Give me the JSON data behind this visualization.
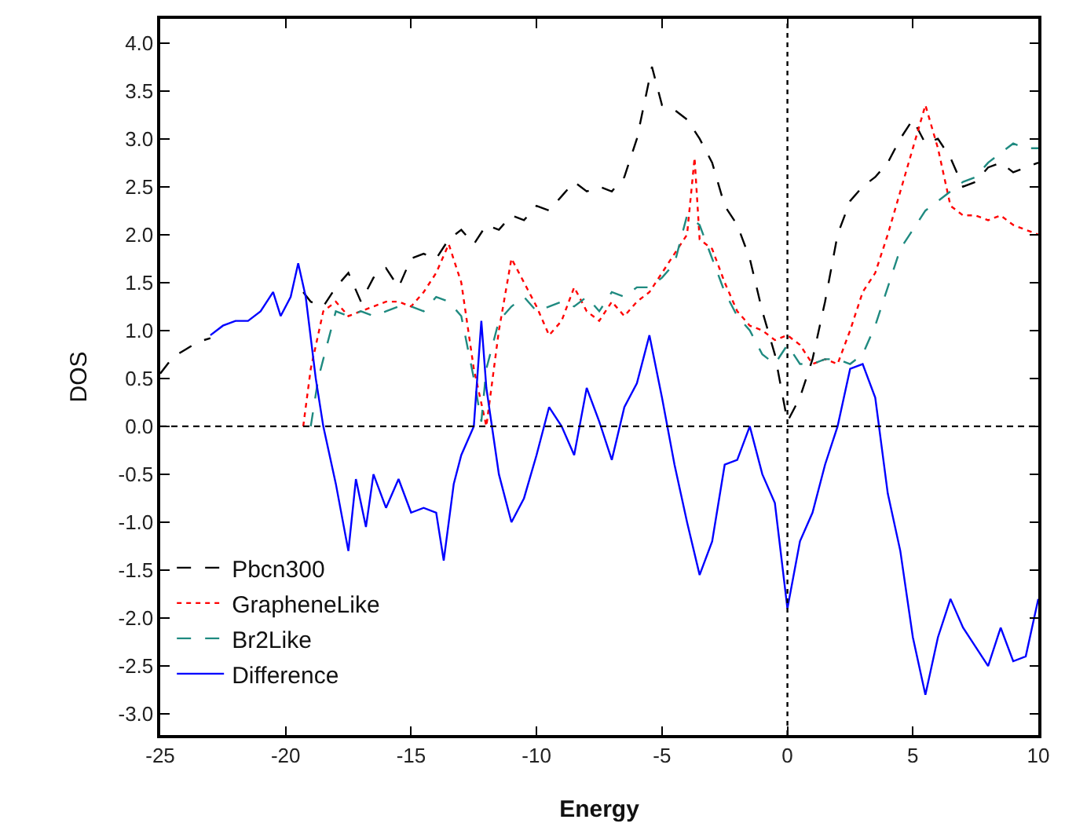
{
  "chart_data": {
    "type": "line",
    "xlabel": "Energy",
    "ylabel": "DOS",
    "xlim": [
      -25,
      10
    ],
    "xticks": [
      -25,
      -20,
      -15,
      -10,
      -5,
      0,
      5,
      10
    ],
    "ylim": [
      -3.22,
      4.25
    ],
    "yticks": [
      {
        "value": -3,
        "label": "-3.0"
      },
      {
        "value": -2.5,
        "label": "-2.5"
      },
      {
        "value": -2,
        "label": "-2.0"
      },
      {
        "value": -1.5,
        "label": "-1.5"
      },
      {
        "value": -1,
        "label": "-1.0"
      },
      {
        "value": -0.5,
        "label": "-0.5"
      },
      {
        "value": 0,
        "label": "0.0"
      },
      {
        "value": 0.5,
        "label": "0.5"
      },
      {
        "value": 1,
        "label": "1.0"
      },
      {
        "value": 1.5,
        "label": "1.5"
      },
      {
        "value": 2,
        "label": "2.0"
      },
      {
        "value": 2.5,
        "label": "2.5"
      },
      {
        "value": 3,
        "label": "3.0"
      },
      {
        "value": 3.5,
        "label": "3.5"
      },
      {
        "value": 4,
        "label": "4.0"
      }
    ],
    "legend": "bottom left",
    "marker": "none",
    "ref_lines": [
      {
        "axis": "x",
        "value": 0,
        "color": "#000000",
        "line_style": "dotted"
      },
      {
        "axis": "y",
        "value": 0,
        "color": "#000000",
        "line_style": "dashed"
      }
    ],
    "series": [
      {
        "name": "Pbcn300",
        "color": "#000000",
        "line_style": "dashed",
        "x": [
          -25,
          -24.5,
          -24,
          -23.5,
          -23,
          -22,
          -19.3,
          -19,
          -18.5,
          -18,
          -17.5,
          -17,
          -16.5,
          -16,
          -15.5,
          -15,
          -14.5,
          -14,
          -13.5,
          -13,
          -12.5,
          -12,
          -11.5,
          -11,
          -10.5,
          -10,
          -9.5,
          -9,
          -8.5,
          -8,
          -7.5,
          -7,
          -6.5,
          -6,
          -5.4,
          -5,
          -4.5,
          -4,
          -3.5,
          -3,
          -2.5,
          -2,
          -1.5,
          -1,
          -0.5,
          0,
          0.5,
          1,
          1.5,
          2,
          2.5,
          3,
          3.5,
          4,
          4.5,
          5,
          5.5,
          6,
          6.5,
          7,
          7.5,
          8,
          8.5,
          9,
          9.5,
          10
        ],
        "values": [
          0.55,
          0.72,
          0.8,
          0.88,
          0.92,
          null,
          1.4,
          1.3,
          1.25,
          1.45,
          1.6,
          1.3,
          1.55,
          1.65,
          1.45,
          1.75,
          1.8,
          1.75,
          1.95,
          2.05,
          1.9,
          2.1,
          2.05,
          2.2,
          2.15,
          2.3,
          2.25,
          2.4,
          2.55,
          2.45,
          2.5,
          2.45,
          2.6,
          3.0,
          3.75,
          3.35,
          3.3,
          3.2,
          3.0,
          2.75,
          2.3,
          2.1,
          1.75,
          1.2,
          0.75,
          0.05,
          0.3,
          0.7,
          1.3,
          2.0,
          2.35,
          2.5,
          2.6,
          2.75,
          3.0,
          3.2,
          2.95,
          3.0,
          2.8,
          2.5,
          2.55,
          2.7,
          2.75,
          2.65,
          2.7,
          2.75
        ]
      },
      {
        "name": "GrapheneLike",
        "color": "#ff0000",
        "line_style": "dotted",
        "x": [
          -19.3,
          -19,
          -18.5,
          -18,
          -17.5,
          -17,
          -16.5,
          -16,
          -15.5,
          -15,
          -14.5,
          -14,
          -13.5,
          -13,
          -12.5,
          -12,
          -11.5,
          -11,
          -10.5,
          -10,
          -9.5,
          -9,
          -8.5,
          -8,
          -7.5,
          -7,
          -6.5,
          -6,
          -5.5,
          -5,
          -4.5,
          -4,
          -3.7,
          -3.5,
          -3,
          -2.5,
          -2,
          -1.5,
          -1,
          -0.5,
          0,
          0.5,
          1,
          1.5,
          2,
          2.5,
          3,
          3.5,
          4,
          4.5,
          5,
          5.5,
          6,
          6.5,
          7,
          7.5,
          8,
          8.5,
          9,
          9.5,
          10
        ],
        "values": [
          0.0,
          0.6,
          1.2,
          1.3,
          1.15,
          1.2,
          1.25,
          1.3,
          1.3,
          1.25,
          1.4,
          1.6,
          1.9,
          1.5,
          0.6,
          0.0,
          1.0,
          1.75,
          1.5,
          1.25,
          0.95,
          1.1,
          1.45,
          1.2,
          1.1,
          1.3,
          1.15,
          1.3,
          1.4,
          1.6,
          1.8,
          2.0,
          2.8,
          1.95,
          1.85,
          1.5,
          1.2,
          1.05,
          1.0,
          0.9,
          0.95,
          0.85,
          0.65,
          0.7,
          0.65,
          1.0,
          1.4,
          1.6,
          2.0,
          2.45,
          2.9,
          3.35,
          2.9,
          2.3,
          2.2,
          2.2,
          2.15,
          2.2,
          2.1,
          2.05,
          2.0
        ]
      },
      {
        "name": "Br2Like",
        "color": "#1f8a80",
        "line_style": "dashed",
        "x": [
          -19,
          -18.7,
          -18.5,
          -18,
          -17.5,
          -17,
          -16.5,
          -16,
          -15.5,
          -15,
          -14.5,
          -14,
          -13.5,
          -13,
          -12.5,
          -12.2,
          -12,
          -11.5,
          -11,
          -10.5,
          -10,
          -9.5,
          -9,
          -8.5,
          -8,
          -7.5,
          -7,
          -6.5,
          -6,
          -5.5,
          -5,
          -4.5,
          -4,
          -3.5,
          -3,
          -2.5,
          -2,
          -1.5,
          -1,
          -0.5,
          0,
          0.5,
          1,
          1.5,
          2,
          2.5,
          3,
          3.5,
          4,
          4.5,
          5,
          5.5,
          6,
          6.5,
          7,
          7.5,
          8,
          8.5,
          9,
          9.5,
          10
        ],
        "values": [
          0.0,
          0.5,
          0.7,
          1.2,
          1.15,
          1.2,
          1.15,
          1.2,
          1.25,
          1.25,
          1.2,
          1.35,
          1.3,
          1.15,
          0.5,
          0.05,
          0.6,
          1.1,
          1.25,
          1.35,
          1.2,
          1.25,
          1.3,
          1.25,
          1.35,
          1.2,
          1.4,
          1.35,
          1.45,
          1.45,
          1.55,
          1.7,
          2.2,
          2.1,
          1.75,
          1.4,
          1.15,
          1.0,
          0.75,
          0.65,
          0.85,
          0.65,
          0.65,
          0.7,
          0.7,
          0.65,
          0.75,
          1.05,
          1.45,
          1.85,
          2.05,
          2.25,
          2.35,
          2.45,
          2.55,
          2.6,
          2.75,
          2.85,
          2.95,
          2.9,
          2.9
        ]
      },
      {
        "name": "Difference",
        "color": "#0000ff",
        "line_style": "solid",
        "x": [
          -23,
          -22.5,
          -22,
          -21.5,
          -21,
          -20.5,
          -20.2,
          -19.8,
          -19.5,
          -19.2,
          -18.8,
          -18.5,
          -18,
          -17.5,
          -17.2,
          -16.8,
          -16.5,
          -16,
          -15.5,
          -15,
          -14.5,
          -14,
          -13.7,
          -13.3,
          -13,
          -12.5,
          -12.2,
          -12,
          -11.5,
          -11,
          -10.5,
          -10,
          -9.5,
          -9,
          -8.5,
          -8,
          -7.5,
          -7,
          -6.5,
          -6,
          -5.5,
          -5,
          -4.5,
          -4,
          -3.5,
          -3,
          -2.5,
          -2,
          -1.5,
          -1,
          -0.5,
          0,
          0.5,
          1,
          1.5,
          2,
          2.5,
          3,
          3.5,
          4,
          4.5,
          5,
          5.5,
          6,
          6.5,
          7,
          7.5,
          8,
          8.5,
          9,
          9.5,
          10
        ],
        "values": [
          0.95,
          1.05,
          1.1,
          1.1,
          1.2,
          1.4,
          1.15,
          1.35,
          1.7,
          1.35,
          0.5,
          0.0,
          -0.6,
          -1.3,
          -0.55,
          -1.05,
          -0.5,
          -0.85,
          -0.55,
          -0.9,
          -0.85,
          -0.9,
          -1.4,
          -0.6,
          -0.3,
          0.0,
          1.1,
          0.4,
          -0.5,
          -1.0,
          -0.75,
          -0.3,
          0.2,
          0.0,
          -0.3,
          0.4,
          0.05,
          -0.35,
          0.2,
          0.45,
          0.95,
          0.3,
          -0.4,
          -1.0,
          -1.55,
          -1.2,
          -0.4,
          -0.35,
          0.0,
          -0.5,
          -0.8,
          -1.9,
          -1.2,
          -0.9,
          -0.4,
          0.0,
          0.6,
          0.65,
          0.3,
          -0.7,
          -1.3,
          -2.2,
          -2.8,
          -2.2,
          -1.8,
          -2.1,
          -2.3,
          -2.5,
          -2.1,
          -2.45,
          -2.4,
          -1.8
        ]
      }
    ]
  }
}
